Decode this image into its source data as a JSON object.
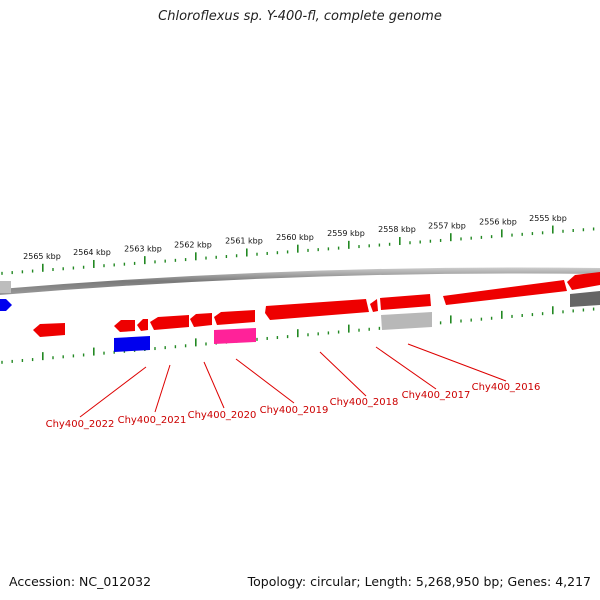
{
  "title": "Chloroflexus sp. Y-400-fl, complete genome",
  "footer": {
    "accession": "Accession: NC_012032",
    "topology": "Topology: circular; Length: 5,268,950 bp; Genes: 4,217"
  },
  "ruler": {
    "labels": [
      "2565 kbp",
      "2564 kbp",
      "2563 kbp",
      "2562 kbp",
      "2561 kbp",
      "2560 kbp",
      "2559 kbp",
      "2558 kbp",
      "2557 kbp",
      "2556 kbp",
      "2555 kbp"
    ]
  },
  "gene_labels": [
    "Chy400_2022",
    "Chy400_2021",
    "Chy400_2020",
    "Chy400_2019",
    "Chy400_2018",
    "Chy400_2017",
    "Chy400_2016"
  ],
  "colors": {
    "forward": "#ee0000",
    "blue": "#0000ee",
    "magenta": "#ff2299",
    "grey_light": "#b8b8b8",
    "grey_dark": "#666666",
    "ruler": "#228822",
    "backbone": "#888888"
  }
}
